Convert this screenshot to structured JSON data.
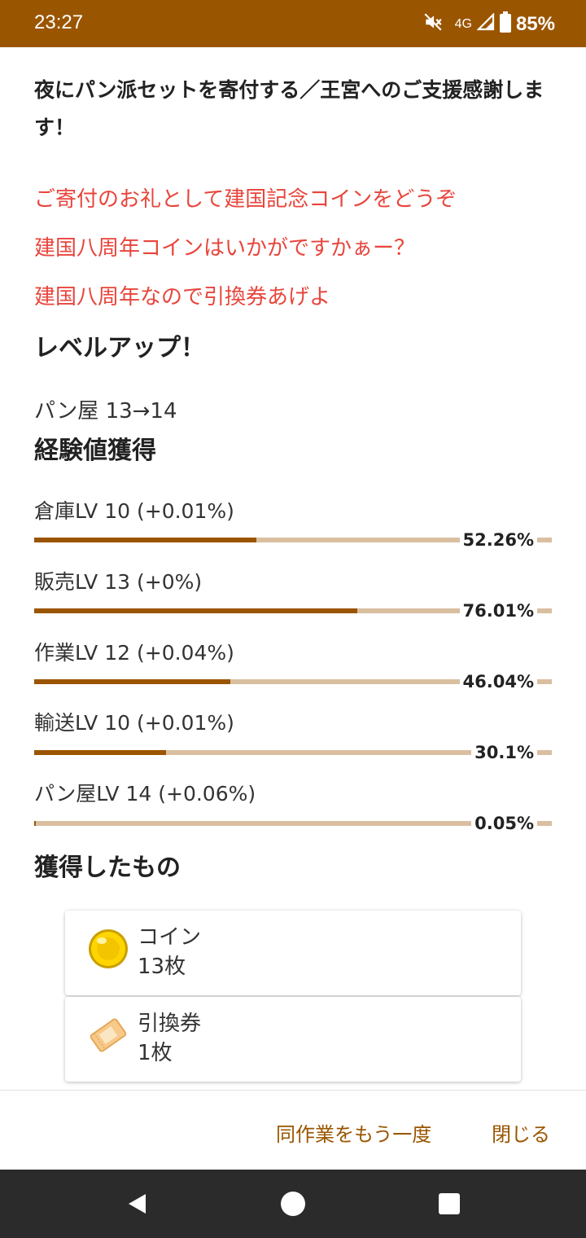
{
  "status": {
    "time": "23:27",
    "network": "4G",
    "battery": "85%",
    "icons": [
      "mute-icon",
      "signal-icon",
      "battery-icon"
    ]
  },
  "headline": "夜にパン派セットを寄付する／王宮へのご支援感謝します！",
  "messages": [
    "ご寄付のお礼として建国記念コインをどうぞ",
    "建国八周年コインはいかがですかぁー？",
    "建国八周年なので引換券あげよ"
  ],
  "level_up": {
    "title": "レベルアップ！",
    "detail": "パン屋 13→14"
  },
  "exp": {
    "title": "経験値獲得",
    "skills": [
      {
        "label": "倉庫LV 10 (+0.01%)",
        "pct_text": "52.26%",
        "fraction": 0.5226
      },
      {
        "label": "販売LV 13 (+0%)",
        "pct_text": "76.01%",
        "fraction": 0.7601
      },
      {
        "label": "作業LV 12 (+0.04%)",
        "pct_text": "46.04%",
        "fraction": 0.4604
      },
      {
        "label": "輸送LV 10 (+0.01%)",
        "pct_text": "30.1%",
        "fraction": 0.301
      },
      {
        "label": "パン屋LV 14 (+0.06%)",
        "pct_text": "0.05%",
        "fraction": 0.0005
      }
    ]
  },
  "rewards": {
    "title": "獲得したもの",
    "items": [
      {
        "name": "コイン",
        "count": "13枚",
        "icon": "coin-icon"
      },
      {
        "name": "引換券",
        "count": "1枚",
        "icon": "ticket-icon"
      }
    ]
  },
  "actions": {
    "repeat": "同作業をもう一度",
    "close": "閉じる"
  },
  "colors": {
    "status_bar": "#9a5500",
    "accent": "#9a5500",
    "bar_track": "#d9bfa0",
    "message": "#e8453c",
    "nav_bar": "#2b2b2b"
  }
}
